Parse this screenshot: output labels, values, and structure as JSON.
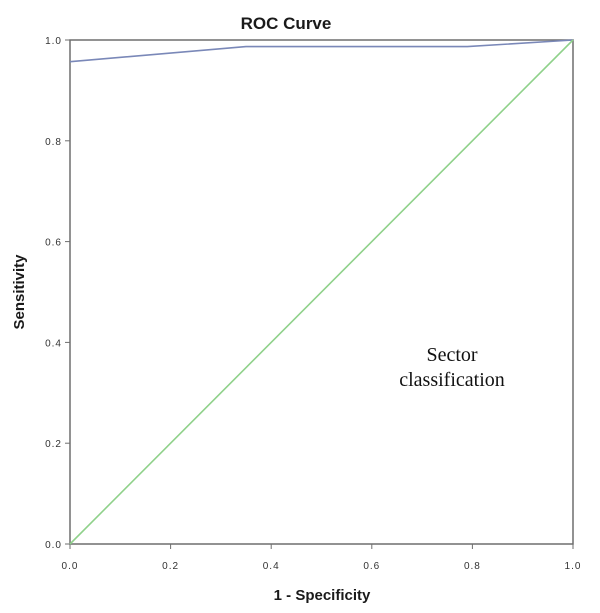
{
  "chart_data": {
    "type": "line",
    "title": "ROC Curve",
    "xlabel": "1 - Specificity",
    "ylabel": "Sensitivity",
    "xlim": [
      0,
      1
    ],
    "ylim": [
      0,
      1
    ],
    "x_ticks": [
      "0.0",
      "0.2",
      "0.4",
      "0.6",
      "0.8",
      "1.0"
    ],
    "y_ticks": [
      "0.0",
      "0.2",
      "0.4",
      "0.6",
      "0.8",
      "1.0"
    ],
    "grid": false,
    "series": [
      {
        "color": "#7a88b8",
        "x": [
          0.0,
          0.35,
          0.79,
          1.0
        ],
        "y": [
          0.957,
          0.987,
          0.987,
          1.0
        ]
      },
      {
        "color": "#8fd18a",
        "x": [
          0.0,
          1.0
        ],
        "y": [
          0.0,
          1.0
        ]
      }
    ],
    "annotation": {
      "lines": [
        "Sector",
        "classification"
      ]
    }
  }
}
